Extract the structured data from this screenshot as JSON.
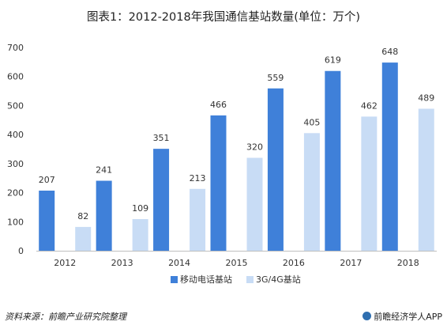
{
  "chart_data": {
    "type": "bar",
    "title": "图表1：2012-2018年我国通信基站数量(单位：万个)",
    "categories": [
      "2012",
      "2013",
      "2014",
      "2015",
      "2016",
      "2017",
      "2018"
    ],
    "series": [
      {
        "name": "移动电话基站",
        "values": [
          207,
          241,
          351,
          466,
          559,
          619,
          648
        ],
        "color": "#3f80d9"
      },
      {
        "name": "3G/4G基站",
        "values": [
          82,
          109,
          213,
          320,
          405,
          462,
          489
        ],
        "color": "#c8dcf5"
      }
    ],
    "ylim": [
      0,
      700
    ],
    "yticks": [
      0,
      100,
      200,
      300,
      400,
      500,
      600,
      700
    ],
    "grid": false,
    "legend": "bottom"
  },
  "footer": {
    "source": "资料来源：前瞻产业研究院整理",
    "brand": "前瞻经济学人APP"
  },
  "colors": {
    "axis": "#bfbfbf",
    "brand_icon": "#2f6fb0"
  },
  "icons": {
    "brand_logo": "brand-logo-icon"
  }
}
